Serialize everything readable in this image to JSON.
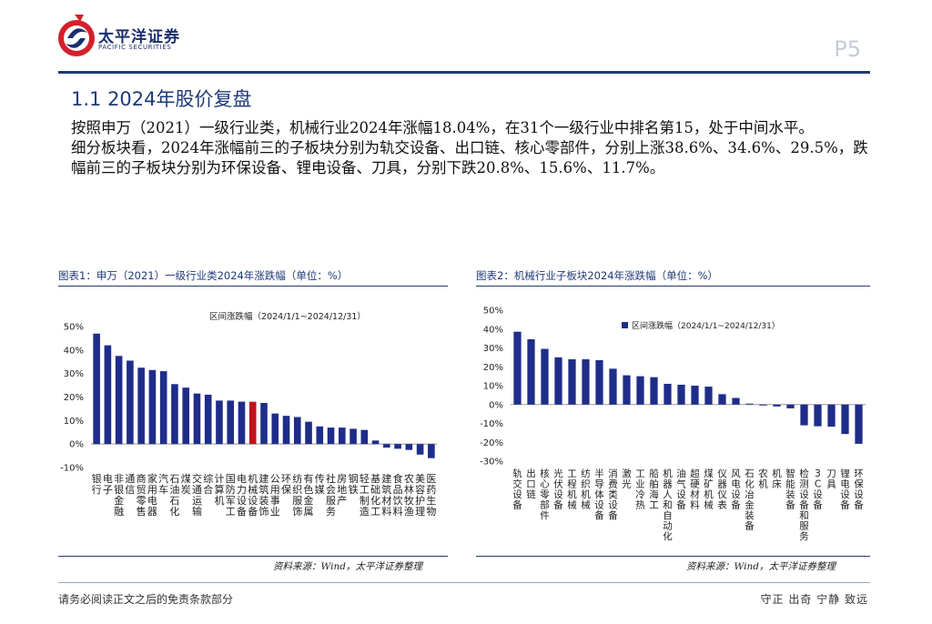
{
  "header": {
    "brand_name": "太平洋证券",
    "brand_sub": "PACIFIC SECURITIES",
    "page_number": "P5"
  },
  "section": {
    "title": "1.1  2024年股价复盘"
  },
  "paragraphs": [
    "按照申万（2021）一级行业类，机械行业2024年涨幅18.04%，在31个一级行业中排名第15，处于中间水平。",
    "细分板块看，2024年涨幅前三的子板块分别为轨交设备、出口链、核心零部件，分别上涨38.6%、34.6%、29.5%，跌幅前三的子板块分别为环保设备、锂电设备、刀具，分别下跌20.8%、15.6%、11.7%。"
  ],
  "figures": {
    "fig1_title": "图表1：申万（2021）一级行业类2024年涨跌幅（单位：%）",
    "fig2_title": "图表2：机械行业子板块2024年涨跌幅（单位：%）",
    "fig1_source": "资料来源：Wind，太平洋证券整理",
    "fig2_source": "资料来源：Wind，太平洋证券整理"
  },
  "footer": {
    "disclaimer": "请务必阅读正文之后的免责条款部分",
    "motto": "守正  出奇  宁静  致远"
  },
  "colors": {
    "bar": "#1f2d8a",
    "highlight": "#c0141c",
    "brand": "#1f3a78"
  },
  "chart_data": [
    {
      "type": "bar",
      "title": "区间涨跌幅（2024/1/1~2024/12/31）",
      "categories": [
        "银行",
        "电子",
        "非银金融",
        "通信",
        "商贸零售",
        "家用电器",
        "汽车",
        "石油石化",
        "煤炭",
        "交通运输",
        "综合",
        "计算机",
        "国防军工",
        "电力设备",
        "机械设备",
        "建筑装饰",
        "公用事业",
        "环保",
        "纺织服饰",
        "有色金属",
        "传媒",
        "社会服务",
        "房地产",
        "钢铁",
        "轻工制造",
        "基础化工",
        "建筑材料",
        "食品饮料",
        "农林牧渔",
        "美容护理",
        "医药生物"
      ],
      "values": [
        47,
        42,
        37.5,
        35.5,
        32.5,
        31.5,
        31,
        25.5,
        24,
        21.5,
        21,
        18.5,
        18.5,
        18.04,
        18,
        17.5,
        13,
        12,
        11.5,
        9.5,
        7.5,
        7,
        7,
        6.5,
        6,
        1.5,
        -1.5,
        -2,
        -2.5,
        -4.5,
        -6
      ],
      "highlight": "机械设备",
      "ylim": [
        -10,
        50
      ],
      "yticks": [
        "-10%",
        "0%",
        "10%",
        "20%",
        "30%",
        "40%",
        "50%"
      ],
      "ytick_values": [
        -10,
        0,
        10,
        20,
        30,
        40,
        50
      ]
    },
    {
      "type": "bar",
      "title": "区间涨跌幅（2024/1/1~2024/12/31）",
      "legend": "区间涨跌幅（2024/1/1~2024/12/31）",
      "categories": [
        "轨交设备",
        "出口链",
        "核心零部件",
        "光伏设备",
        "工程机械",
        "纺织机械",
        "半导体设备",
        "消费类设备",
        "激光",
        "工业冷热",
        "船舶海工",
        "机器人和自动化",
        "油气设备",
        "超硬材料",
        "煤矿机械",
        "仪器仪表",
        "风电设备",
        "石化冶金装备",
        "农机",
        "机床",
        "智能装备",
        "检测设备和服务",
        "3C设备",
        "刀具",
        "锂电设备",
        "环保设备"
      ],
      "values": [
        38.6,
        34.6,
        29.5,
        25,
        24,
        24,
        23.5,
        19,
        15.5,
        15,
        14.5,
        11,
        10.5,
        10,
        9.5,
        5.5,
        3.5,
        0.5,
        -0.5,
        -1,
        -2,
        -11,
        -11.5,
        -11.7,
        -15.6,
        -20.8
      ],
      "ylim": [
        -30,
        50
      ],
      "yticks": [
        "-30%",
        "-20%",
        "-10%",
        "0%",
        "10%",
        "20%",
        "30%",
        "40%",
        "50%"
      ],
      "ytick_values": [
        -30,
        -20,
        -10,
        0,
        10,
        20,
        30,
        40,
        50
      ]
    }
  ]
}
